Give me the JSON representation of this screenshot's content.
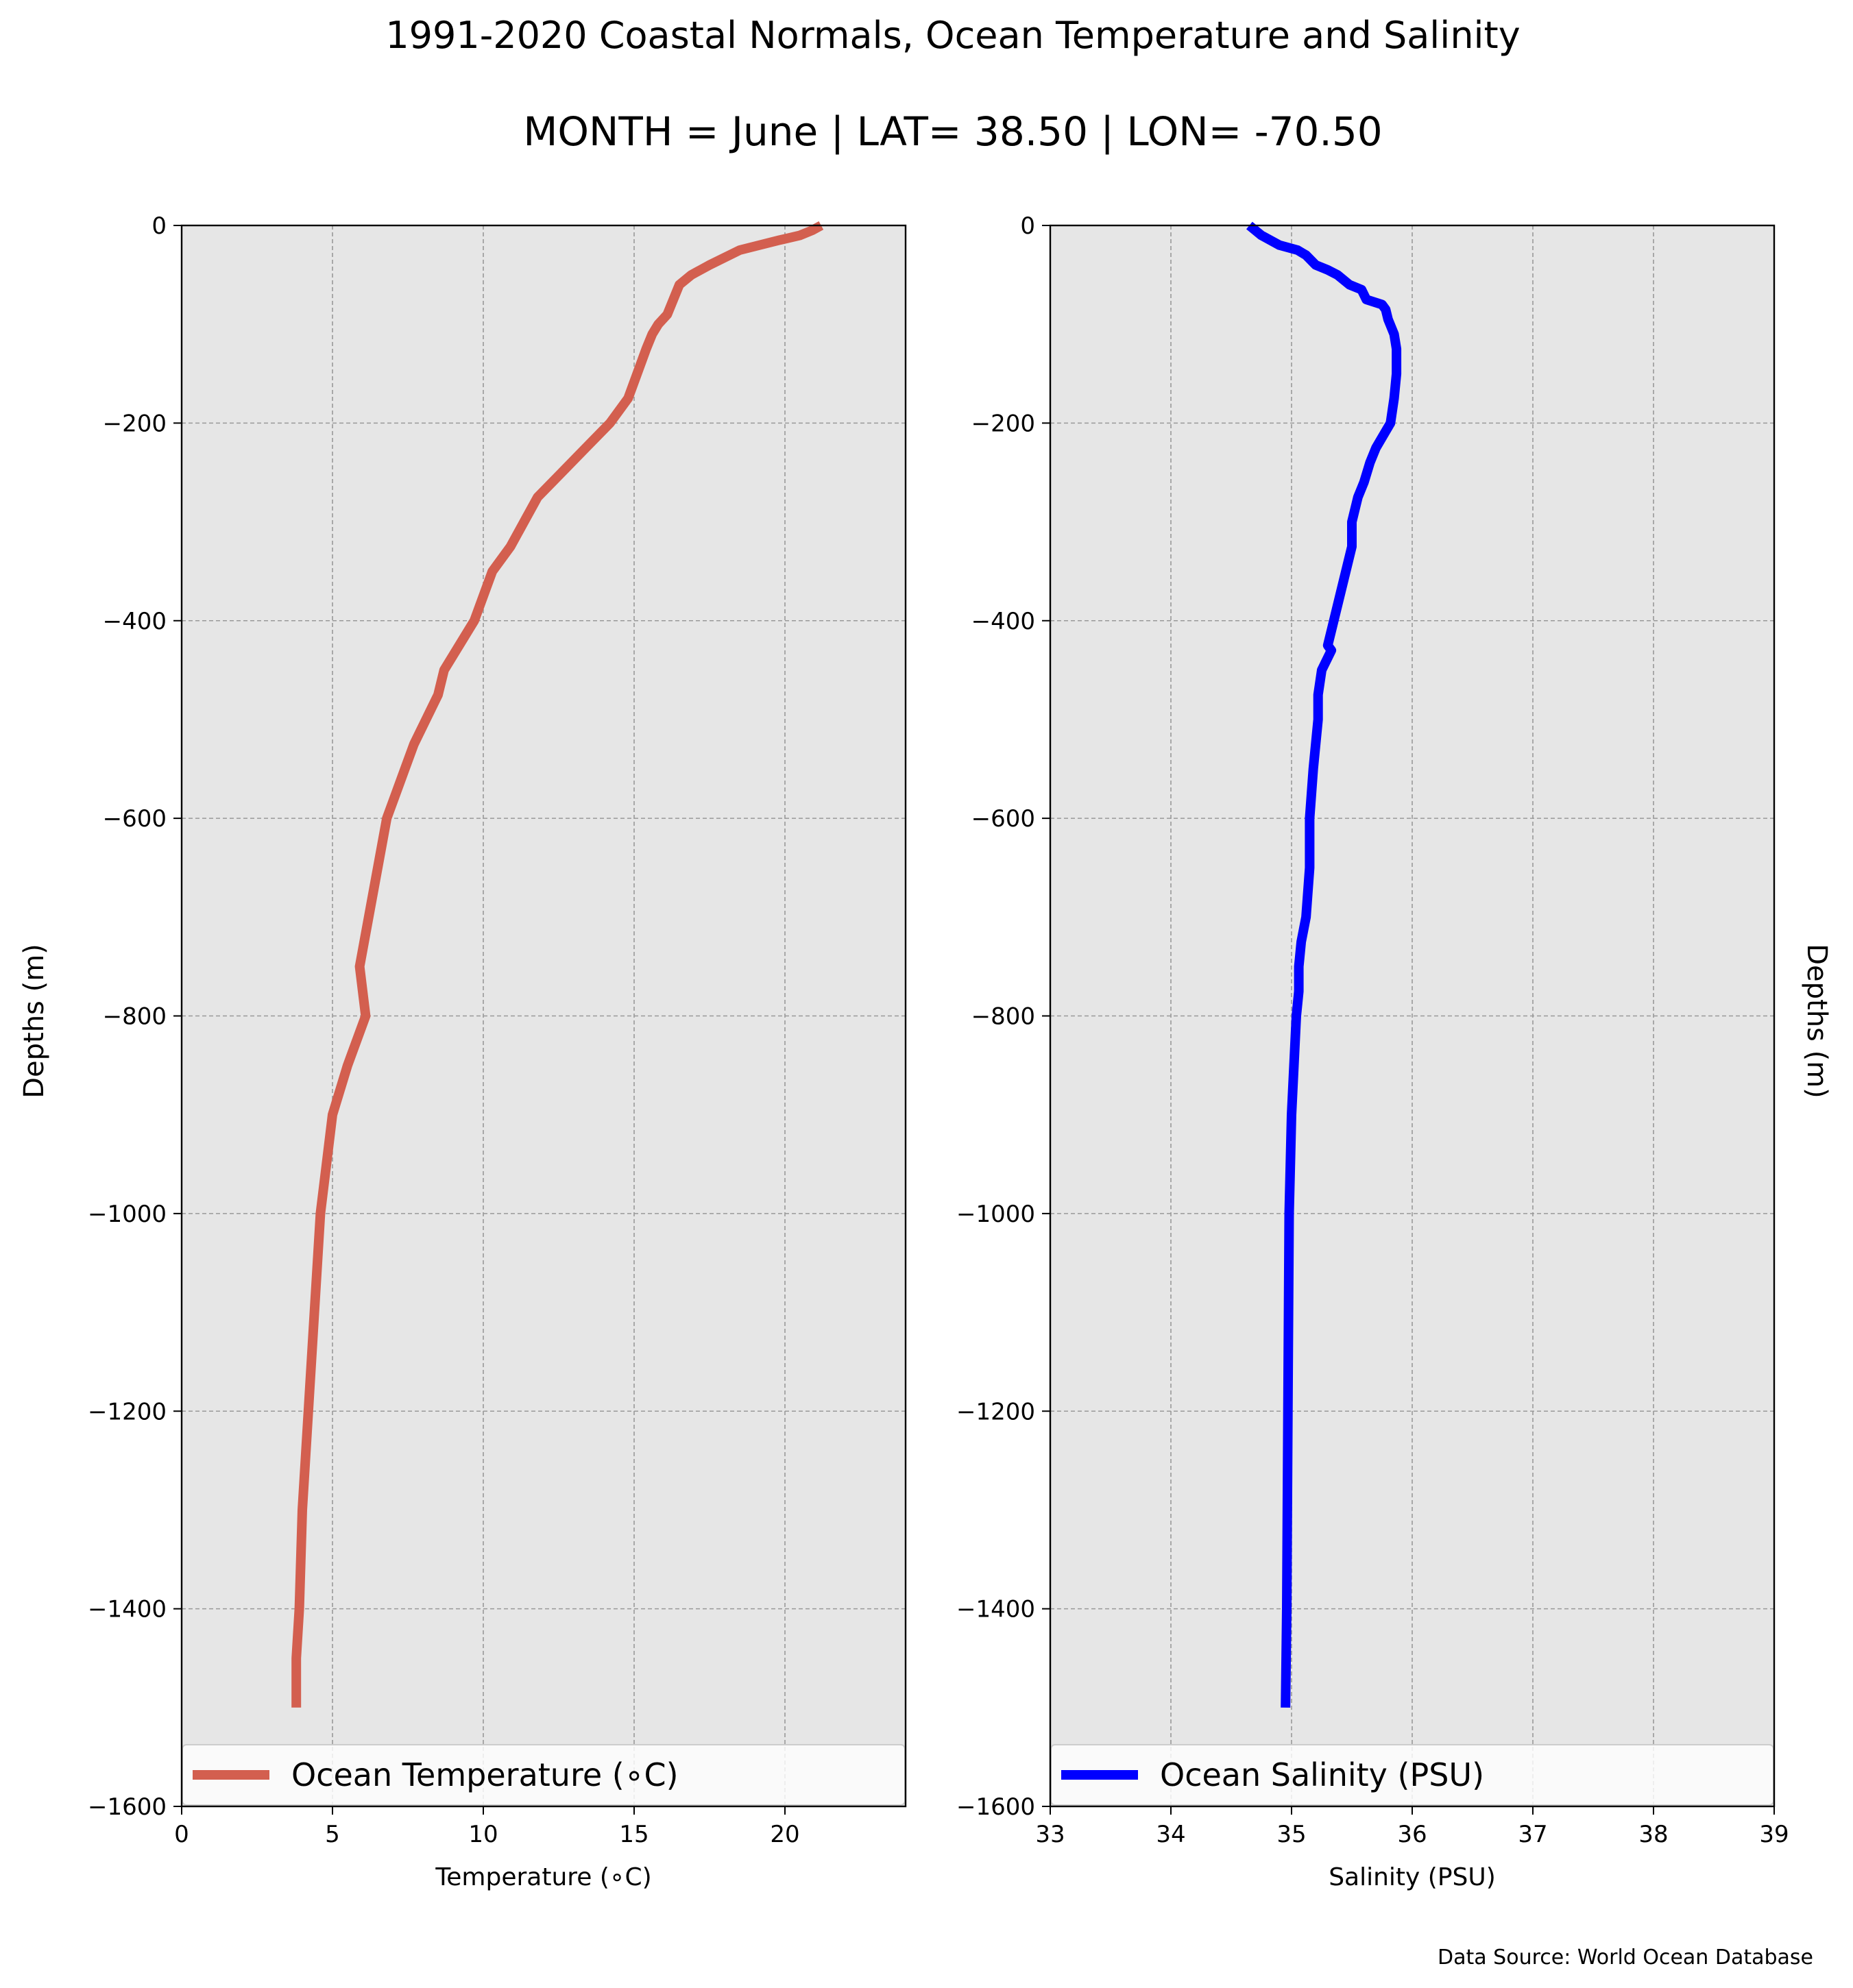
{
  "title": "1991-2020 Coastal Normals, Ocean Temperature and Salinity",
  "subtitle": "MONTH = June | LAT= 38.50 | LON= -70.50",
  "source": "Data Source: World Ocean Database",
  "colors": {
    "plot_background": "#e6e6e6",
    "grid": "#999999",
    "temperature_line": "#d35f4f",
    "salinity_line": "#0000ff"
  },
  "chart_data": [
    {
      "type": "line",
      "xlabel": "Temperature (∘C)",
      "ylabel": "Depths (m)",
      "xlim": [
        0,
        24
      ],
      "ylim": [
        -1600,
        0
      ],
      "xticks": [
        0,
        5,
        10,
        15,
        20
      ],
      "xtick_labels": [
        "0",
        "5",
        "10",
        "15",
        "20"
      ],
      "yticks": [
        0,
        -200,
        -400,
        -600,
        -800,
        -1000,
        -1200,
        -1400,
        -1600
      ],
      "ytick_labels": [
        "0",
        "−200",
        "−400",
        "−600",
        "−800",
        "−1000",
        "−1200",
        "−1400",
        "−1600"
      ],
      "grid": true,
      "legend_position": "bottom",
      "series": [
        {
          "name": "Ocean Temperature (∘C)",
          "color": "#d35f4f",
          "x": [
            21.2,
            20.9,
            20.5,
            19.8,
            18.5,
            17.5,
            16.9,
            16.5,
            16.3,
            16.1,
            15.8,
            15.6,
            15.4,
            15.1,
            14.8,
            14.2,
            13.4,
            12.6,
            11.8,
            10.9,
            10.3,
            9.7,
            9.2,
            8.7,
            8.5,
            8.1,
            7.7,
            7.4,
            7.1,
            6.8,
            6.5,
            6.2,
            5.9,
            6.0,
            6.1,
            5.5,
            5.0,
            4.8,
            4.6,
            4.4,
            4.2,
            4.1,
            4.0,
            3.9,
            3.8,
            3.8
          ],
          "y": [
            0,
            -5,
            -10,
            -15,
            -25,
            -40,
            -50,
            -60,
            -75,
            -90,
            -100,
            -110,
            -125,
            -150,
            -175,
            -200,
            -225,
            -250,
            -275,
            -325,
            -350,
            -400,
            -425,
            -450,
            -475,
            -500,
            -525,
            -550,
            -575,
            -600,
            -650,
            -700,
            -750,
            -775,
            -800,
            -850,
            -900,
            -950,
            -1000,
            -1100,
            -1200,
            -1250,
            -1300,
            -1400,
            -1450,
            -1500
          ]
        }
      ]
    },
    {
      "type": "line",
      "xlabel": "Salinity (PSU)",
      "ylabel": "Depths (m)",
      "xlim": [
        33,
        39
      ],
      "ylim": [
        -1600,
        0
      ],
      "xticks": [
        33,
        34,
        35,
        36,
        37,
        38,
        39
      ],
      "xtick_labels": [
        "33",
        "34",
        "35",
        "36",
        "37",
        "38",
        "39"
      ],
      "yticks": [
        0,
        -200,
        -400,
        -600,
        -800,
        -1000,
        -1200,
        -1400,
        -1600
      ],
      "ytick_labels": [
        "0",
        "−200",
        "−400",
        "−600",
        "−800",
        "−1000",
        "−1200",
        "−1400",
        "−1600"
      ],
      "grid": true,
      "legend_position": "bottom",
      "series": [
        {
          "name": "Ocean Salinity (PSU)",
          "color": "#0000ff",
          "x": [
            34.65,
            34.75,
            34.9,
            35.05,
            35.12,
            35.2,
            35.3,
            35.38,
            35.48,
            35.58,
            35.62,
            35.75,
            35.78,
            35.8,
            35.85,
            35.87,
            35.87,
            35.85,
            35.82,
            35.7,
            35.65,
            35.6,
            35.55,
            35.5,
            35.5,
            35.5,
            35.45,
            35.4,
            35.35,
            35.3,
            35.33,
            35.25,
            35.22,
            35.22,
            35.18,
            35.15,
            35.15,
            35.12,
            35.08,
            35.06,
            35.06,
            35.04,
            35.02,
            35.0,
            34.98,
            34.97,
            34.96,
            34.95
          ],
          "y": [
            0,
            -10,
            -20,
            -25,
            -30,
            -40,
            -45,
            -50,
            -60,
            -65,
            -75,
            -80,
            -85,
            -95,
            -110,
            -125,
            -150,
            -175,
            -200,
            -225,
            -240,
            -260,
            -275,
            -300,
            -310,
            -325,
            -350,
            -375,
            -400,
            -425,
            -430,
            -450,
            -475,
            -500,
            -550,
            -600,
            -650,
            -700,
            -725,
            -750,
            -775,
            -800,
            -850,
            -900,
            -1000,
            -1200,
            -1400,
            -1500
          ]
        }
      ]
    }
  ]
}
